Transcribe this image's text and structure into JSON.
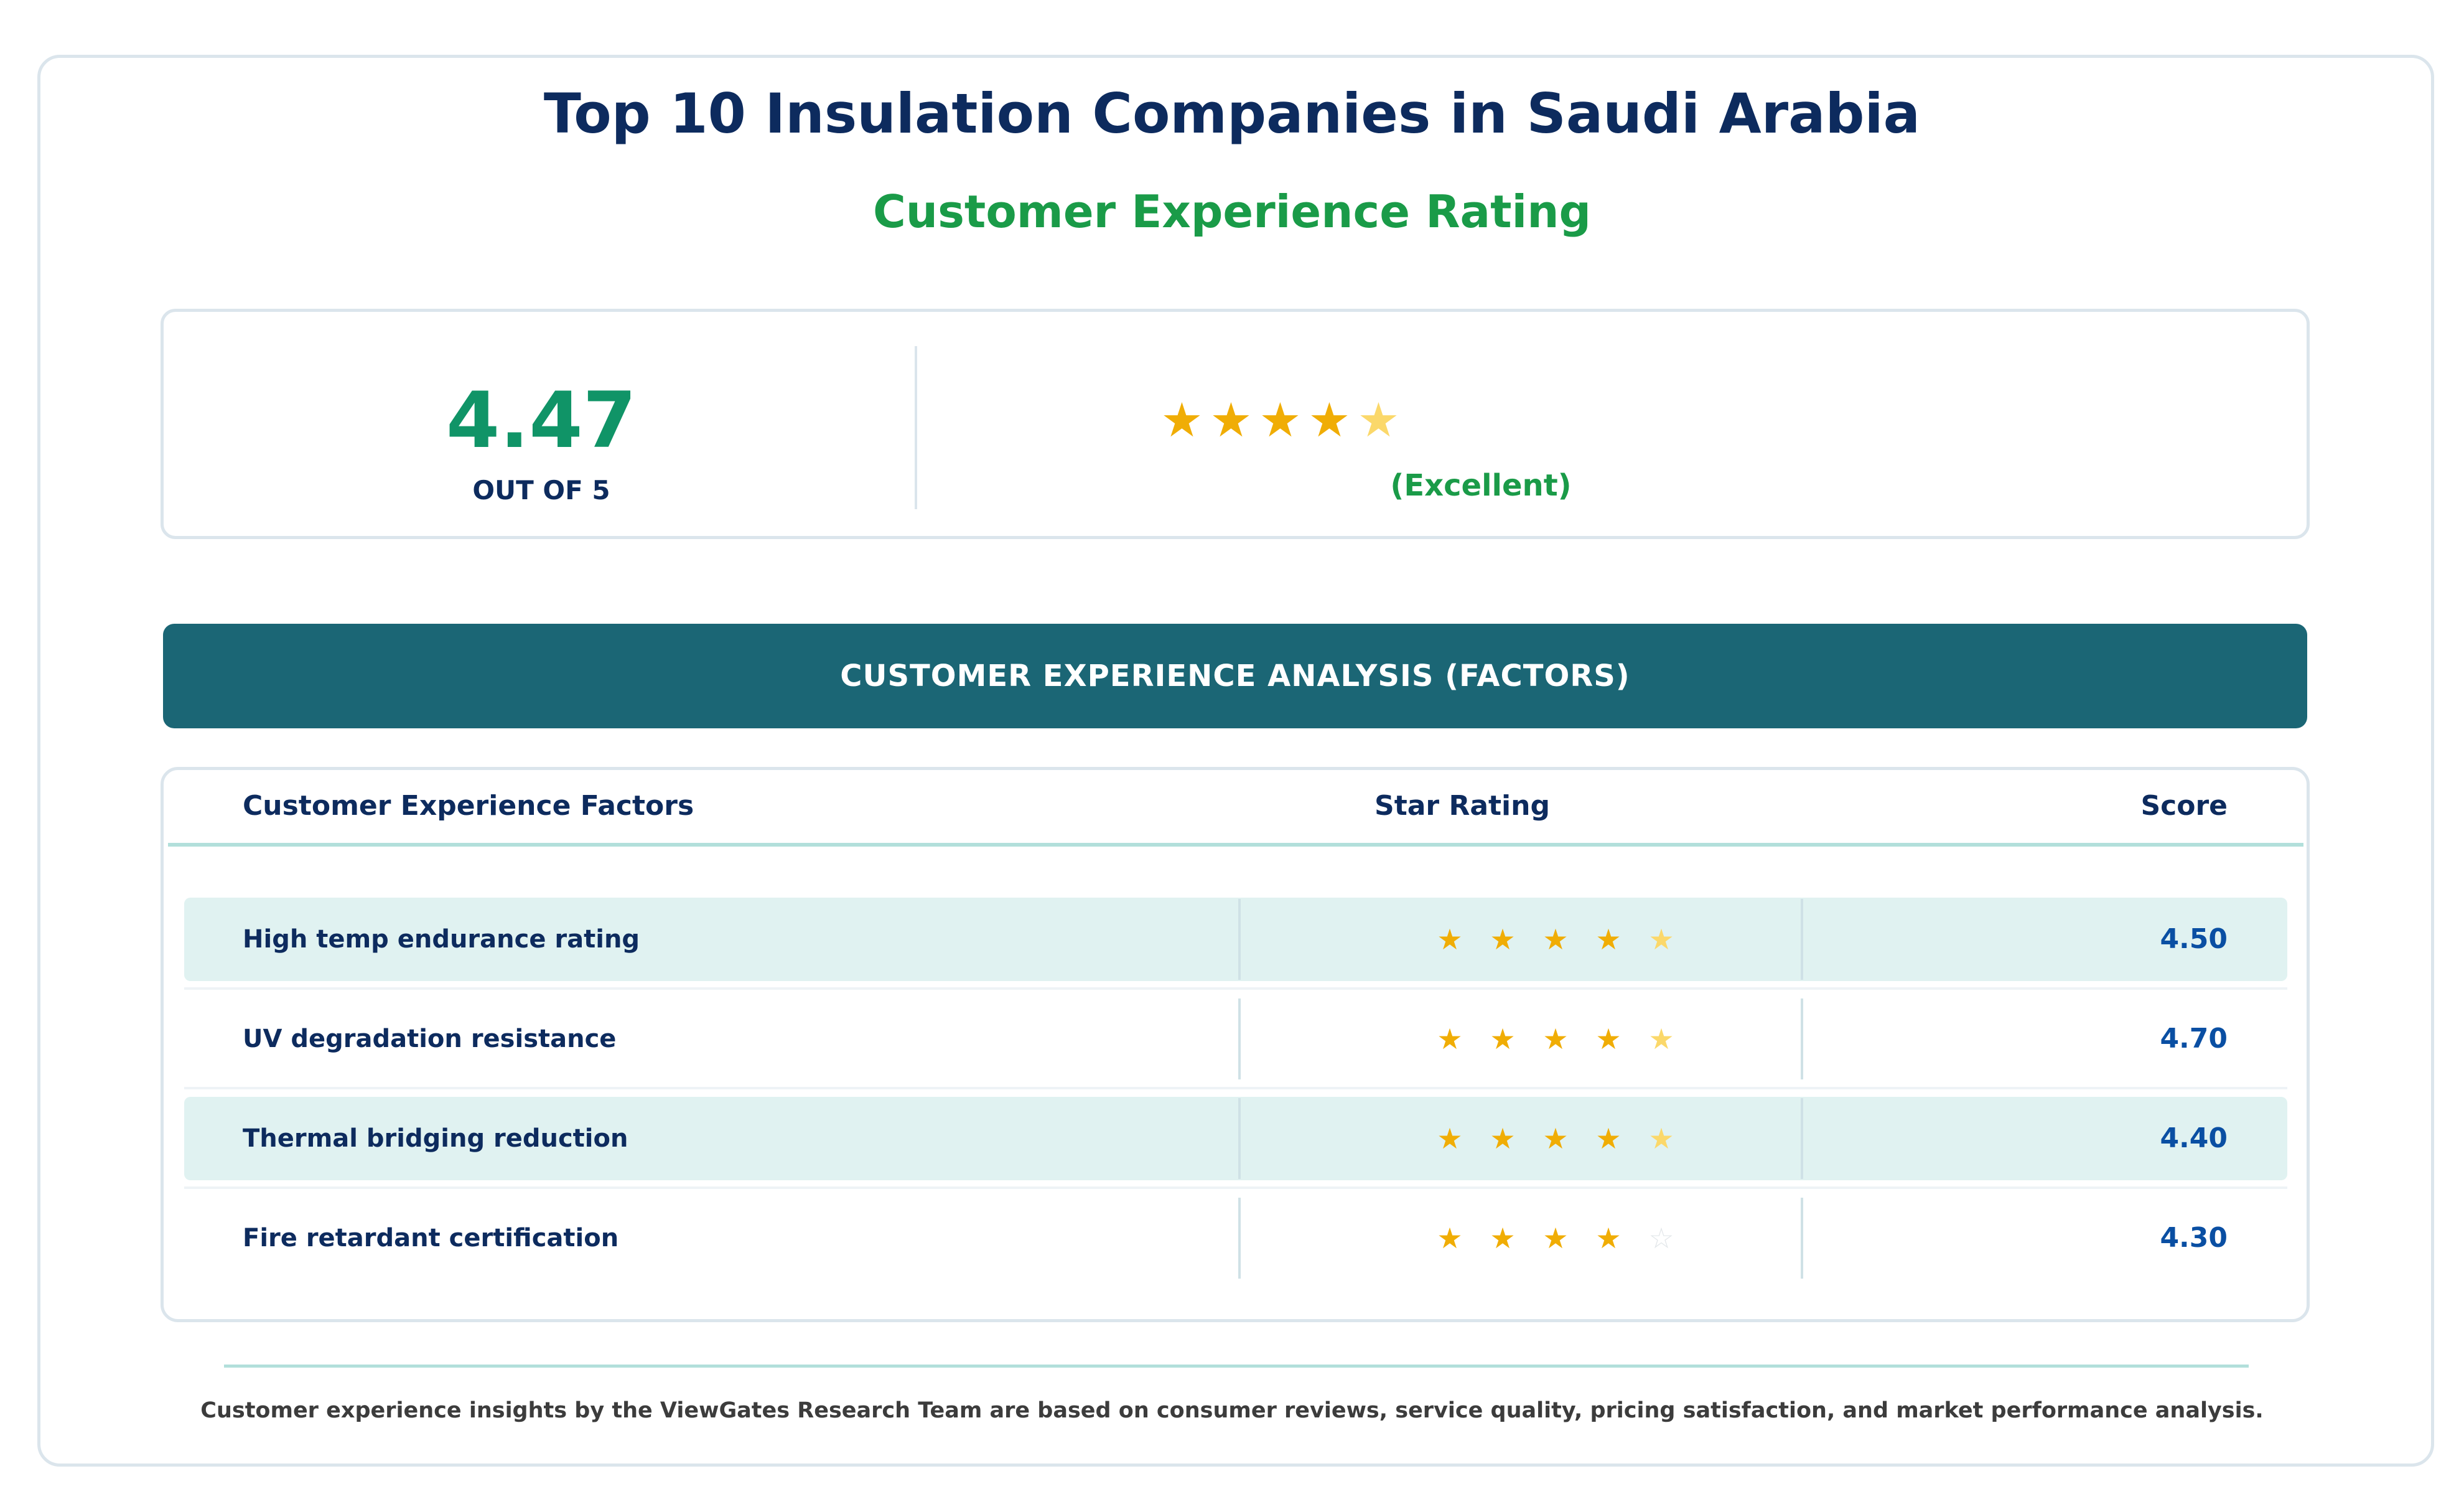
{
  "header": {
    "title": "Top 10 Insulation Companies in Saudi Arabia",
    "subtitle": "Customer Experience Rating"
  },
  "summary": {
    "score": "4.47",
    "out_of": "OUT OF 5",
    "rating_value": 4.47,
    "rating_max": 5,
    "stars": [
      "full",
      "full",
      "full",
      "full",
      "half"
    ],
    "verdict": "(Excellent)"
  },
  "banner": {
    "label": "CUSTOMER EXPERIENCE ANALYSIS (FACTORS)"
  },
  "table": {
    "headers": {
      "factor": "Customer Experience Factors",
      "rating": "Star Rating",
      "score": "Score"
    },
    "rows": [
      {
        "factor": "High temp endurance rating",
        "score": "4.50",
        "stars": [
          "full",
          "full",
          "full",
          "full",
          "half"
        ],
        "shaded": true
      },
      {
        "factor": "UV degradation resistance",
        "score": "4.70",
        "stars": [
          "full",
          "full",
          "full",
          "full",
          "half"
        ],
        "shaded": false
      },
      {
        "factor": "Thermal bridging reduction",
        "score": "4.40",
        "stars": [
          "full",
          "full",
          "full",
          "full",
          "half"
        ],
        "shaded": true
      },
      {
        "factor": "Fire retardant certification",
        "score": "4.30",
        "stars": [
          "full",
          "full",
          "full",
          "full",
          "empty"
        ],
        "shaded": false
      }
    ]
  },
  "footer": {
    "note": "Customer experience insights by the ViewGates Research Team are based on consumer reviews, service quality, pricing satisfaction, and market performance analysis."
  },
  "colors": {
    "title": "#0d2b5e",
    "accent_green": "#1a9b48",
    "score_green": "#109467",
    "banner_teal": "#1b6675",
    "row_shade": "#e0f2f1",
    "star_full": "#f0ad05",
    "star_half": "#fbd86a",
    "score_blue": "#0a4fa3"
  }
}
